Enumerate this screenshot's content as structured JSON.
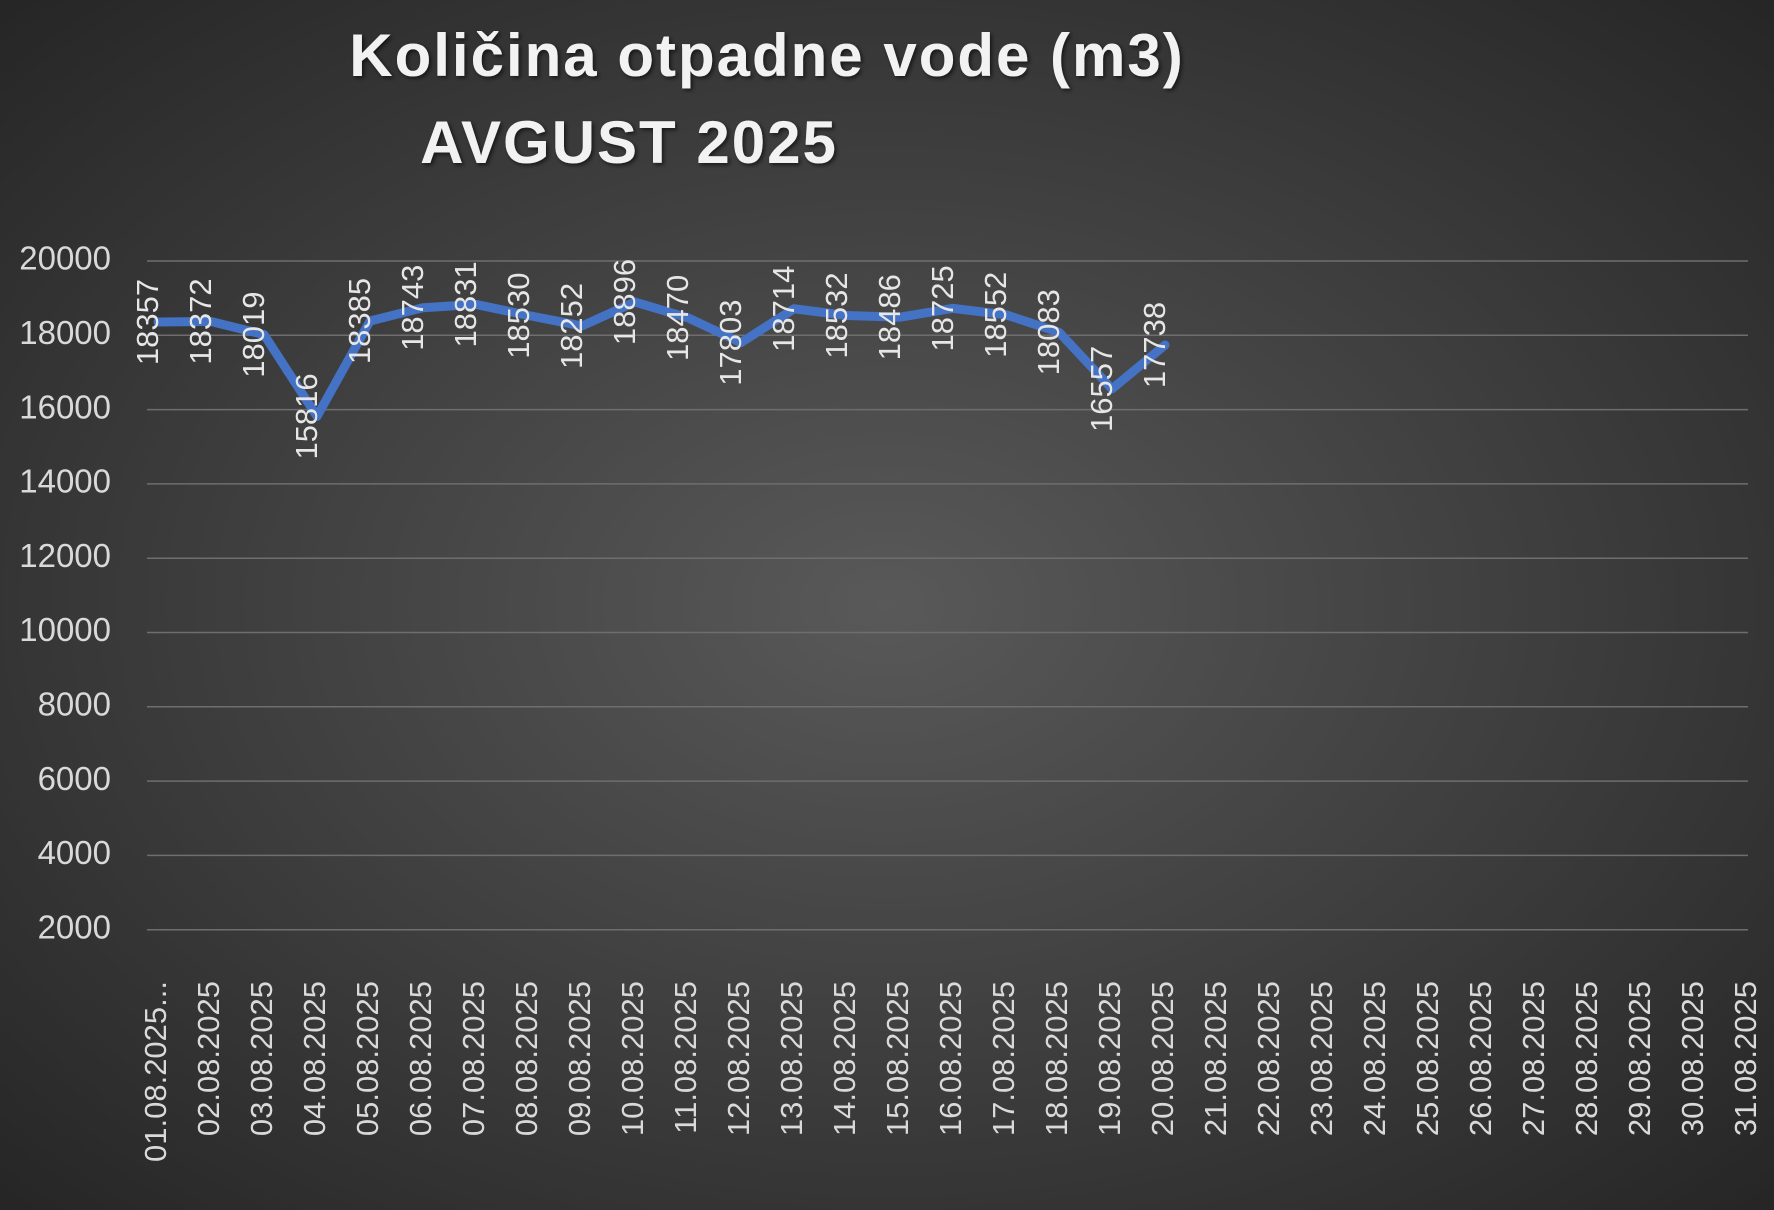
{
  "chart_data": {
    "type": "line",
    "title": "Količina otpadne vode (m3)",
    "subtitle": "AVGUST 2025",
    "categories": [
      "01.08.2025...",
      "02.08.2025",
      "03.08.2025",
      "04.08.2025",
      "05.08.2025",
      "06.08.2025",
      "07.08.2025",
      "08.08.2025",
      "09.08.2025",
      "10.08.2025",
      "11.08.2025",
      "12.08.2025",
      "13.08.2025",
      "14.08.2025",
      "15.08.2025",
      "16.08.2025",
      "17.08.2025",
      "18.08.2025",
      "19.08.2025",
      "20.08.2025",
      "21.08.2025",
      "22.08.2025",
      "23.08.2025",
      "24.08.2025",
      "25.08.2025",
      "26.08.2025",
      "27.08.2025",
      "28.08.2025",
      "29.08.2025",
      "30.08.2025",
      "31.08.2025"
    ],
    "series": [
      {
        "color": "#4472c4",
        "values": [
          18357,
          18372,
          18019,
          15816,
          18385,
          18743,
          18831,
          18530,
          18252,
          18896,
          18470,
          17803,
          18714,
          18532,
          18486,
          18725,
          18552,
          18083,
          16557,
          17738,
          null,
          null,
          null,
          null,
          null,
          null,
          null,
          null,
          null,
          null,
          null
        ]
      }
    ],
    "ylim": [
      0,
      20000
    ],
    "yticks": [
      2000,
      4000,
      6000,
      8000,
      10000,
      12000,
      14000,
      16000,
      18000,
      20000
    ],
    "grid": true
  }
}
